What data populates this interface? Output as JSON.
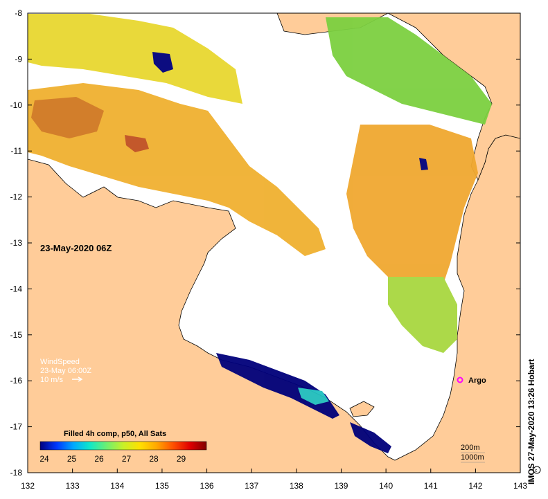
{
  "map": {
    "timestamp": "23-May-2020 06Z",
    "colors": {
      "land": "#FFCC99",
      "coast": "#000000",
      "background": "#FFFFFF",
      "cold": "#00007A",
      "warm": "#E3A52A"
    },
    "x_ticks": [
      "132",
      "133",
      "134",
      "135",
      "136",
      "137",
      "138",
      "139",
      "140",
      "141",
      "142",
      "143"
    ],
    "y_ticks": [
      "-8",
      "-9",
      "-10",
      "-11",
      "-12",
      "-13",
      "-14",
      "-15",
      "-16",
      "-17",
      "-18"
    ],
    "wind": {
      "title": "WindSpeed",
      "time": "23-May 06:00Z",
      "scale": "10 m/s"
    },
    "argo_label": "Argo",
    "argo_color": "#FF00FF",
    "colorbar": {
      "title": "Filled 4h comp, p50, All Sats",
      "labels": [
        "24",
        "25",
        "26",
        "27",
        "28",
        "29"
      ],
      "colors": [
        "#00007F",
        "#0038FF",
        "#00A8FF",
        "#10E8C8",
        "#6EF070",
        "#C8F028",
        "#FFE000",
        "#FFA800",
        "#FF5000",
        "#E00000",
        "#800000"
      ]
    },
    "contours": {
      "shallow": "200m",
      "deep": "1000m"
    },
    "credit": "IMOS 27-May-2020 13:26 Hobart",
    "copyright_icon": "copyright-icon"
  }
}
